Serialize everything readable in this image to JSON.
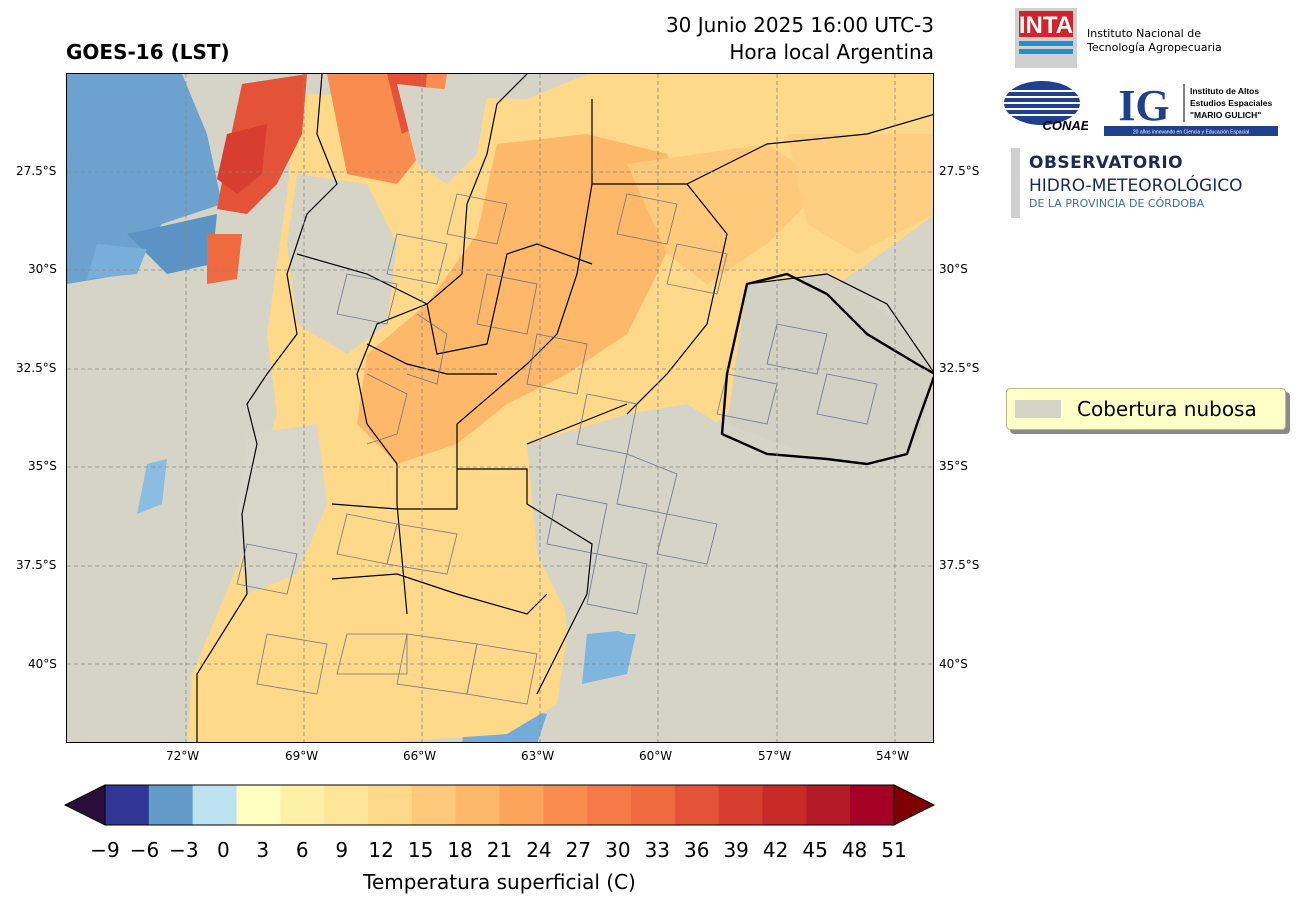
{
  "header": {
    "satellite_title": "GOES-16 (LST)",
    "datetime": "30 Junio 2025 16:00 UTC-3",
    "timezone_label": "Hora local Argentina"
  },
  "map": {
    "lat_labels": [
      "27.5°S",
      "30°S",
      "32.5°S",
      "35°S",
      "37.5°S",
      "40°S"
    ],
    "lon_labels": [
      "72°W",
      "69°W",
      "66°W",
      "63°W",
      "60°W",
      "57°W",
      "54°W"
    ],
    "cloud_color": "#d6d4c7",
    "gridlines": true
  },
  "legend": {
    "label": "Cobertura nubosa",
    "swatch_color": "#d6d4c7",
    "background": "#ffffc8"
  },
  "colorbar": {
    "ticks": [
      "−9",
      "−6",
      "−3",
      "0",
      "3",
      "6",
      "9",
      "12",
      "15",
      "18",
      "21",
      "24",
      "27",
      "30",
      "33",
      "36",
      "39",
      "42",
      "45",
      "48",
      "51"
    ],
    "label": "Temperatura superficial (C)",
    "colors": [
      "#313695",
      "#649ac8",
      "#bce1ef",
      "#ffffc0",
      "#fff0a8",
      "#fee597",
      "#fed98a",
      "#fec97a",
      "#fdb86a",
      "#fda45c",
      "#fb8c4f",
      "#f67a47",
      "#f06a3f",
      "#e45338",
      "#d73e2f",
      "#c82a28",
      "#b51a28",
      "#a50026"
    ],
    "under_color": "#2a0f3d",
    "over_color": "#7f0000"
  },
  "logos": {
    "inta_mark": "INTA",
    "inta_name_line1": "Instituto Nacional de",
    "inta_name_line2": "Tecnología Agropecuaria",
    "conae_mark": "CONAE",
    "ig_mark": "IG",
    "ig_name_line1": "Instituto de Altos",
    "ig_name_line2": "Estudios Espaciales",
    "ig_name_line3": "\"MARIO GULICH\"",
    "ig_tagline": "20 años innovando en Ciencia y Educación Espacial",
    "obs_title": "OBSERVATORIO",
    "obs_sub1": "HIDRO-METEOROLÓGICO",
    "obs_sub2": "DE LA PROVINCIA DE CÓRDOBA"
  }
}
